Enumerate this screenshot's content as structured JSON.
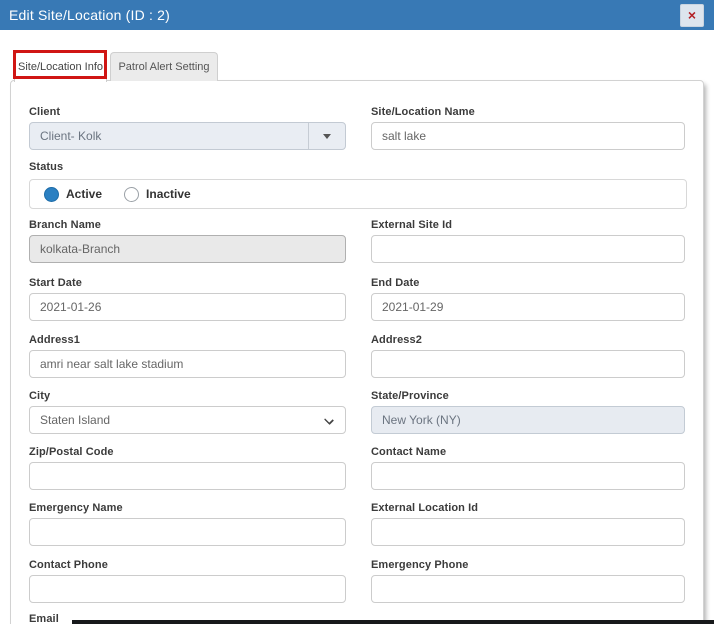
{
  "header": {
    "title": "Edit Site/Location (ID : 2)",
    "close_icon": "×"
  },
  "tabs": [
    {
      "label": "Site/Location Info",
      "active": true,
      "annotated": true
    },
    {
      "label": "Patrol Alert Setting",
      "active": false
    }
  ],
  "form": {
    "client": {
      "label": "Client",
      "value": "Client- Kolk",
      "disabled": true
    },
    "site_name": {
      "label": "Site/Location Name",
      "value": "salt lake"
    },
    "status": {
      "label": "Status",
      "options": [
        {
          "label": "Active",
          "selected": true
        },
        {
          "label": "Inactive",
          "selected": false
        }
      ]
    },
    "branch_name": {
      "label": "Branch Name",
      "value": "kolkata-Branch",
      "disabled": true
    },
    "external_site_id": {
      "label": "External Site Id",
      "value": ""
    },
    "start_date": {
      "label": "Start Date",
      "value": "2021-01-26"
    },
    "end_date": {
      "label": "End Date",
      "value": "2021-01-29"
    },
    "address1": {
      "label": "Address1",
      "value": "amri near salt lake stadium"
    },
    "address2": {
      "label": "Address2",
      "value": ""
    },
    "city": {
      "label": "City",
      "value": "Staten Island"
    },
    "state": {
      "label": "State/Province",
      "value": "New York (NY)",
      "disabled": true
    },
    "zip": {
      "label": "Zip/Postal Code",
      "value": ""
    },
    "contact_name": {
      "label": "Contact Name",
      "value": ""
    },
    "emergency_name": {
      "label": "Emergency Name",
      "value": ""
    },
    "external_location_id": {
      "label": "External Location Id",
      "value": ""
    },
    "contact_phone": {
      "label": "Contact Phone",
      "value": ""
    },
    "emergency_phone": {
      "label": "Emergency Phone",
      "value": ""
    },
    "email": {
      "label": "Email"
    }
  },
  "colors": {
    "header_bg": "#3879b5",
    "annotation_red": "#d01614",
    "close_red": "#b21f24",
    "radio_active": "#2b80c2",
    "disabled_gray": "#e9e9e9",
    "disabled_bluegray": "#e7ebf1",
    "bottom_edge": "#17191b"
  }
}
